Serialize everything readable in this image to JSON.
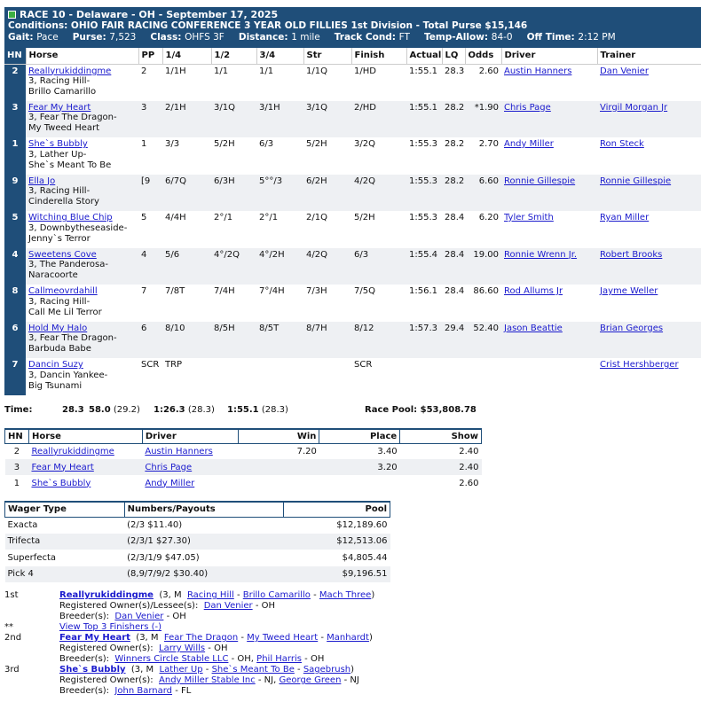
{
  "header": {
    "line1": "RACE 10 - Delaware - OH - September 17, 2025",
    "line2": "Conditions: OHIO FAIR RACING CONFERENCE 3 YEAR OLD FILLIES 1st Division - Total Purse $15,146",
    "gait_label": "Gait:",
    "gait": "Pace",
    "purse_label": "Purse:",
    "purse": "7,523",
    "class_label": "Class:",
    "class": "OHFS 3F",
    "distance_label": "Distance:",
    "distance": "1 mile",
    "track_label": "Track Cond:",
    "track": "FT",
    "temp_label": "Temp-Allow:",
    "temp": "84-0",
    "off_label": "Off Time:",
    "off": "2:12 PM"
  },
  "columns": [
    "HN",
    "Horse",
    "PP",
    "1/4",
    "1/2",
    "3/4",
    "Str",
    "Finish",
    "Actual",
    "LQ",
    "Odds",
    "Driver",
    "Trainer"
  ],
  "entries": [
    {
      "hn": "2",
      "horse": "Reallyrukiddingme",
      "l2": "3, Racing Hill-",
      "l3": "Brillo Camarillo",
      "pp": "2",
      "q1": "1/1H",
      "q2": "1/1",
      "q3": "1/1",
      "str": "1/1Q",
      "fin": "1/HD",
      "actual": "1:55.1",
      "lq": "28.3",
      "odds": "2.60",
      "driver": "Austin Hanners",
      "trainer": "Dan Venier"
    },
    {
      "hn": "3",
      "horse": "Fear My Heart",
      "l2": "3, Fear The Dragon-",
      "l3": "My Tweed Heart",
      "pp": "3",
      "q1": "2/1H",
      "q2": "3/1Q",
      "q3": "3/1H",
      "str": "3/1Q",
      "fin": "2/HD",
      "actual": "1:55.1",
      "lq": "28.2",
      "odds": "*1.90",
      "driver": "Chris Page",
      "trainer": "Virgil Morgan Jr"
    },
    {
      "hn": "1",
      "horse": "She`s Bubbly",
      "l2": "3, Lather Up-",
      "l3": "She`s Meant To Be",
      "pp": "1",
      "q1": "3/3",
      "q2": "5/2H",
      "q3": "6/3",
      "str": "5/2H",
      "fin": "3/2Q",
      "actual": "1:55.3",
      "lq": "28.2",
      "odds": "2.70",
      "driver": "Andy Miller",
      "trainer": "Ron Steck"
    },
    {
      "hn": "9",
      "horse": "Ella Jo",
      "l2": "3, Racing Hill-",
      "l3": "Cinderella Story",
      "pp": "[9",
      "q1": "6/7Q",
      "q2": "6/3H",
      "q3": "5°°/3",
      "str": "6/2H",
      "fin": "4/2Q",
      "actual": "1:55.3",
      "lq": "28.2",
      "odds": "6.60",
      "driver": "Ronnie Gillespie",
      "trainer": "Ronnie Gillespie"
    },
    {
      "hn": "5",
      "horse": "Witching Blue Chip",
      "l2": "3, Downbytheseaside-",
      "l3": "Jenny`s Terror",
      "pp": "5",
      "q1": "4/4H",
      "q2": "2°/1",
      "q3": "2°/1",
      "str": "2/1Q",
      "fin": "5/2H",
      "actual": "1:55.3",
      "lq": "28.4",
      "odds": "6.20",
      "driver": "Tyler Smith",
      "trainer": "Ryan Miller"
    },
    {
      "hn": "4",
      "horse": "Sweetens Cove",
      "l2": "3, The Panderosa-",
      "l3": "Naracoorte",
      "pp": "4",
      "q1": "5/6",
      "q2": "4°/2Q",
      "q3": "4°/2H",
      "str": "4/2Q",
      "fin": "6/3",
      "actual": "1:55.4",
      "lq": "28.4",
      "odds": "19.00",
      "driver": "Ronnie Wrenn Jr.",
      "trainer": "Robert Brooks"
    },
    {
      "hn": "8",
      "horse": "Callmeovrdahill",
      "l2": "3, Racing Hill-",
      "l3": "Call Me Lil Terror",
      "pp": "7",
      "q1": "7/8T",
      "q2": "7/4H",
      "q3": "7°/4H",
      "str": "7/3H",
      "fin": "7/5Q",
      "actual": "1:56.1",
      "lq": "28.4",
      "odds": "86.60",
      "driver": "Rod Allums Jr",
      "trainer": "Jayme Weller"
    },
    {
      "hn": "6",
      "horse": "Hold My Halo",
      "l2": "3, Fear The Dragon-",
      "l3": "Barbuda Babe",
      "pp": "6",
      "q1": "8/10",
      "q2": "8/5H",
      "q3": "8/5T",
      "str": "8/7H",
      "fin": "8/12",
      "actual": "1:57.3",
      "lq": "29.4",
      "odds": "52.40",
      "driver": "Jason Beattie",
      "trainer": "Brian Georges"
    },
    {
      "hn": "7",
      "horse": "Dancin Suzy",
      "l2": "3, Dancin Yankee-",
      "l3": "Big Tsunami",
      "pp": "SCR",
      "q1": "TRP",
      "q2": "",
      "q3": "",
      "str": "",
      "fin": "SCR",
      "actual": "",
      "lq": "",
      "odds": "",
      "driver": "",
      "trainer": "Crist Hershberger"
    }
  ],
  "times": {
    "label": "Time:",
    "q1": "28.3",
    "q2": "58.0",
    "q2s": "(29.2)",
    "q3": "1:26.3",
    "q3s": "(28.3)",
    "fin": "1:55.1",
    "fins": "(28.3)",
    "pool": "Race Pool: $53,808.78"
  },
  "payout": {
    "headers": [
      "HN",
      "Horse",
      "Driver",
      "Win",
      "Place",
      "Show"
    ],
    "rows": [
      {
        "hn": "2",
        "horse": "Reallyrukiddingme",
        "driver": "Austin Hanners",
        "win": "7.20",
        "place": "3.40",
        "show": "2.40"
      },
      {
        "hn": "3",
        "horse": "Fear My Heart",
        "driver": "Chris Page",
        "win": "",
        "place": "3.20",
        "show": "2.40"
      },
      {
        "hn": "1",
        "horse": "She`s Bubbly",
        "driver": "Andy Miller",
        "win": "",
        "place": "",
        "show": "2.60"
      }
    ]
  },
  "wagers": {
    "headers": [
      "Wager Type",
      "Numbers/Payouts",
      "Pool"
    ],
    "rows": [
      {
        "type": "Exacta",
        "nums": "(2/3 $11.40)",
        "pool": "$12,189.60"
      },
      {
        "type": "Trifecta",
        "nums": "(2/3/1 $27.30)",
        "pool": "$12,513.06"
      },
      {
        "type": "Superfecta",
        "nums": "(2/3/1/9 $47.05)",
        "pool": "$4,805.44"
      },
      {
        "type": "Pick 4",
        "nums": "(8,9/7/9/2 $30.40)",
        "pool": "$9,196.51"
      }
    ]
  },
  "finishers": {
    "first": {
      "pos": "1st",
      "name": "Reallyrukiddingme",
      "age": "(3, M",
      "sire": "Racing Hill",
      "dam": "Brillo Camarillo",
      "damsire": "Mach Three",
      "owner_label": "Registered Owner(s)/Lessee(s):",
      "owner": "Dan Venier",
      "owner_loc": "- OH",
      "breeder_label": "Breeder(s):",
      "breeder": "Dan Venier",
      "breeder_loc": "- OH",
      "stars": "**",
      "top3": "View Top 3 Finishers (-)"
    },
    "second": {
      "pos": "2nd",
      "name": "Fear My Heart",
      "age": "(3, M",
      "sire": "Fear The Dragon",
      "dam": "My Tweed Heart",
      "damsire": "Manhardt",
      "owner_label": "Registered Owner(s):",
      "owner": "Larry Wills",
      "owner_loc": "- OH",
      "breeder_label": "Breeder(s):",
      "breeder": "Winners Circle Stable LLC",
      "breeder_mid": "- OH,",
      "breeder2": "Phil Harris",
      "breeder_loc": "- OH"
    },
    "third": {
      "pos": "3rd",
      "name": "She`s Bubbly",
      "age": "(3, M",
      "sire": "Lather Up",
      "dam": "She`s Meant To Be",
      "damsire": "Sagebrush",
      "owner_label": "Registered Owner(s):",
      "owner": "Andy Miller Stable Inc",
      "owner_mid": "- NJ,",
      "owner2": "George Green",
      "owner_loc": "- NJ",
      "breeder_label": "Breeder(s):",
      "breeder": "John Barnard",
      "breeder_loc": "- FL"
    }
  },
  "colors": {
    "header_bg": "#1f4e79",
    "link": "#1a1acd",
    "row_shade": "#eef0f3"
  }
}
